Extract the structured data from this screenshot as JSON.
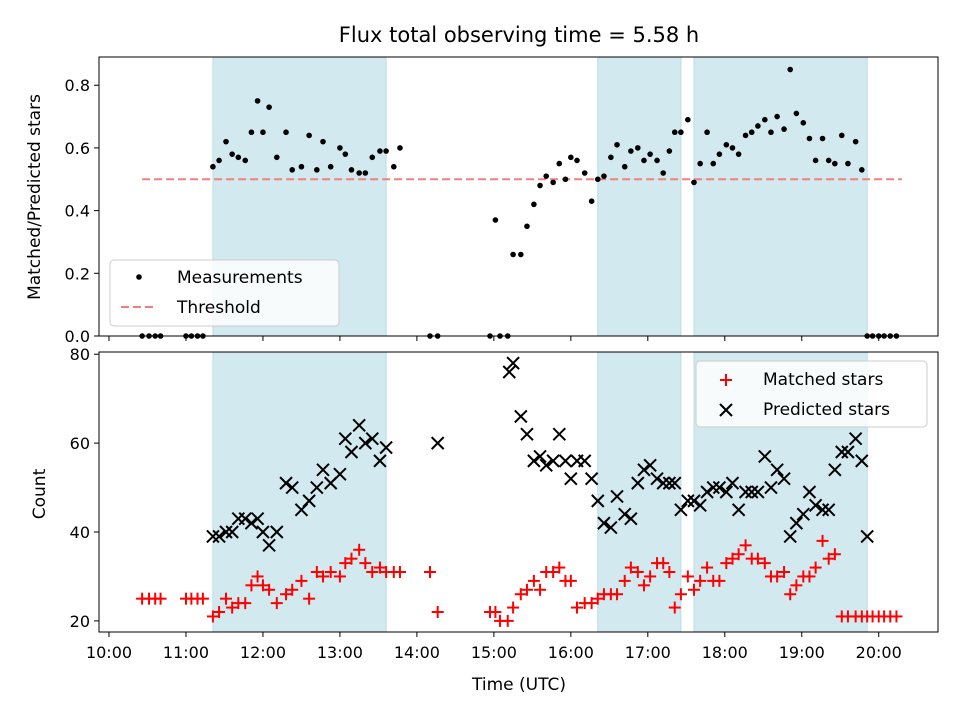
{
  "figure": {
    "title": "Flux total observing time = 5.58 h"
  },
  "chart_data": [
    {
      "type": "scatter",
      "ylabel": "Matched/Predicted stars",
      "xlabel": "",
      "xlim": [
        9.87,
        20.77
      ],
      "ylim": [
        0.0,
        0.89
      ],
      "yticks": [
        0.0,
        0.2,
        0.4,
        0.6,
        0.8
      ],
      "ytick_labels": [
        "0.0",
        "0.2",
        "0.4",
        "0.6",
        "0.8"
      ],
      "legend": {
        "placement": "lower-left",
        "entries": [
          "Measurements",
          "Threshold"
        ]
      },
      "shaded_intervals": [
        [
          11.35,
          13.6
        ],
        [
          16.35,
          17.43
        ],
        [
          17.6,
          19.85
        ]
      ],
      "shade_color": "#d2e9ef",
      "threshold": {
        "name": "Threshold",
        "value": 0.5,
        "x_range": [
          10.43,
          20.3
        ],
        "color": "#f08080"
      },
      "series": [
        {
          "name": "Measurements",
          "color": "#000000",
          "x": [
            10.43,
            10.52,
            10.6,
            10.67,
            11.0,
            11.07,
            11.15,
            11.22,
            11.35,
            11.43,
            11.52,
            11.6,
            11.68,
            11.77,
            11.85,
            11.93,
            12.0,
            12.08,
            12.18,
            12.3,
            12.38,
            12.5,
            12.6,
            12.7,
            12.78,
            12.88,
            13.0,
            13.07,
            13.15,
            13.25,
            13.33,
            13.42,
            13.52,
            13.6,
            13.7,
            13.78,
            14.17,
            14.27,
            14.95,
            15.02,
            15.08,
            15.18,
            15.25,
            15.35,
            15.43,
            15.52,
            15.6,
            15.68,
            15.77,
            15.85,
            15.93,
            16.0,
            16.08,
            16.18,
            16.27,
            16.35,
            16.43,
            16.52,
            16.6,
            16.7,
            16.78,
            16.87,
            16.95,
            17.03,
            17.12,
            17.2,
            17.28,
            17.35,
            17.43,
            17.52,
            17.6,
            17.68,
            17.77,
            17.85,
            17.93,
            18.02,
            18.1,
            18.18,
            18.27,
            18.35,
            18.43,
            18.52,
            18.6,
            18.68,
            18.77,
            18.85,
            18.93,
            19.02,
            19.1,
            19.18,
            19.27,
            19.35,
            19.43,
            19.52,
            19.6,
            19.7,
            19.78,
            19.85,
            19.92,
            20.0,
            20.07,
            20.15,
            20.23
          ],
          "y": [
            0.0,
            0.0,
            0.0,
            0.0,
            0.0,
            0.0,
            0.0,
            0.0,
            0.54,
            0.56,
            0.62,
            0.58,
            0.57,
            0.56,
            0.65,
            0.75,
            0.65,
            0.73,
            0.57,
            0.65,
            0.53,
            0.54,
            0.64,
            0.53,
            0.62,
            0.54,
            0.6,
            0.58,
            0.53,
            0.52,
            0.52,
            0.57,
            0.59,
            0.59,
            0.54,
            0.6,
            0.0,
            0.0,
            0.0,
            0.37,
            0.0,
            0.0,
            0.26,
            0.26,
            0.35,
            0.42,
            0.48,
            0.51,
            0.49,
            0.55,
            0.5,
            0.57,
            0.56,
            0.52,
            0.43,
            0.5,
            0.51,
            0.57,
            0.61,
            0.54,
            0.59,
            0.6,
            0.56,
            0.58,
            0.56,
            0.52,
            0.59,
            0.65,
            0.65,
            0.69,
            0.49,
            0.55,
            0.65,
            0.55,
            0.58,
            0.61,
            0.6,
            0.58,
            0.64,
            0.65,
            0.67,
            0.69,
            0.65,
            0.7,
            0.66,
            0.85,
            0.71,
            0.68,
            0.63,
            0.56,
            0.63,
            0.56,
            0.55,
            0.64,
            0.55,
            0.62,
            0.53,
            0.0,
            0.0,
            0.0,
            0.0,
            0.0,
            0.0
          ]
        }
      ]
    },
    {
      "type": "scatter",
      "ylabel": "Count",
      "xlabel": "Time (UTC)",
      "xlim": [
        9.87,
        20.77
      ],
      "ylim": [
        17.5,
        80.5
      ],
      "yticks": [
        20,
        40,
        60,
        80
      ],
      "ytick_labels": [
        "20",
        "40",
        "60",
        "80"
      ],
      "xticks": [
        10,
        11,
        12,
        13,
        14,
        15,
        16,
        17,
        18,
        19,
        20
      ],
      "xtick_labels": [
        "10:00",
        "11:00",
        "12:00",
        "13:00",
        "14:00",
        "15:00",
        "16:00",
        "17:00",
        "18:00",
        "19:00",
        "20:00"
      ],
      "legend": {
        "placement": "top-right",
        "entries": [
          "Matched stars",
          "Predicted stars"
        ]
      },
      "shaded_intervals": [
        [
          11.35,
          13.6
        ],
        [
          16.35,
          17.43
        ],
        [
          17.6,
          19.85
        ]
      ],
      "shade_color": "#d2e9ef",
      "series": [
        {
          "name": "Matched stars",
          "marker": "+",
          "color": "#ff0000",
          "x": [
            10.43,
            10.52,
            10.6,
            10.67,
            11.0,
            11.07,
            11.15,
            11.22,
            11.35,
            11.43,
            11.52,
            11.6,
            11.68,
            11.77,
            11.85,
            11.93,
            12.0,
            12.08,
            12.18,
            12.3,
            12.38,
            12.5,
            12.6,
            12.7,
            12.78,
            12.88,
            13.0,
            13.07,
            13.15,
            13.25,
            13.33,
            13.42,
            13.52,
            13.6,
            13.7,
            13.78,
            14.17,
            14.27,
            14.95,
            15.02,
            15.08,
            15.18,
            15.25,
            15.35,
            15.43,
            15.52,
            15.6,
            15.68,
            15.77,
            15.85,
            15.93,
            16.0,
            16.08,
            16.18,
            16.27,
            16.35,
            16.43,
            16.52,
            16.6,
            16.7,
            16.78,
            16.87,
            16.95,
            17.03,
            17.12,
            17.2,
            17.28,
            17.35,
            17.43,
            17.52,
            17.6,
            17.68,
            17.77,
            17.85,
            17.93,
            18.02,
            18.1,
            18.18,
            18.27,
            18.35,
            18.43,
            18.52,
            18.6,
            18.68,
            18.77,
            18.85,
            18.93,
            19.02,
            19.1,
            19.18,
            19.27,
            19.35,
            19.43,
            19.52,
            19.6,
            19.7,
            19.78,
            19.85,
            19.92,
            20.0,
            20.07,
            20.15,
            20.23
          ],
          "y": [
            25,
            25,
            25,
            25,
            25,
            25,
            25,
            25,
            21,
            22,
            25,
            23,
            24,
            24,
            28,
            30,
            28,
            27,
            24,
            26,
            27,
            29,
            25,
            31,
            30,
            31,
            30,
            33,
            34,
            36,
            33,
            31,
            32,
            31,
            31,
            31,
            31,
            22,
            22,
            22,
            20,
            20,
            23,
            26,
            27,
            29,
            27,
            31,
            31,
            32,
            29,
            29,
            23,
            24,
            24,
            25,
            26,
            26,
            26,
            29,
            32,
            31,
            28,
            30,
            33,
            33,
            31,
            23,
            26,
            30,
            27,
            29,
            32,
            29,
            29,
            33,
            34,
            35,
            37,
            34,
            34,
            33,
            30,
            30,
            31,
            26,
            28,
            30,
            30,
            32,
            38,
            34,
            35,
            21,
            21,
            21,
            21,
            21,
            21,
            21,
            21,
            21,
            21
          ],
          "x_all": true
        },
        {
          "name": "Predicted stars",
          "marker": "x",
          "color": "#000000",
          "x": [
            11.35,
            11.43,
            11.52,
            11.6,
            11.68,
            11.77,
            11.85,
            11.93,
            12.0,
            12.08,
            12.18,
            12.3,
            12.38,
            12.5,
            12.6,
            12.7,
            12.78,
            12.88,
            13.0,
            13.07,
            13.15,
            13.25,
            13.33,
            13.42,
            13.52,
            13.6,
            14.27,
            15.2,
            15.25,
            15.35,
            15.43,
            15.52,
            15.6,
            15.68,
            15.77,
            15.85,
            15.93,
            16.0,
            16.08,
            16.18,
            16.27,
            16.35,
            16.43,
            16.52,
            16.6,
            16.7,
            16.78,
            16.87,
            16.95,
            17.03,
            17.12,
            17.2,
            17.28,
            17.35,
            17.43,
            17.52,
            17.6,
            17.68,
            17.77,
            17.85,
            17.93,
            18.02,
            18.1,
            18.18,
            18.27,
            18.35,
            18.43,
            18.52,
            18.6,
            18.68,
            18.77,
            18.85,
            18.93,
            19.02,
            19.1,
            19.18,
            19.27,
            19.35,
            19.43,
            19.52,
            19.6,
            19.7,
            19.78,
            19.85
          ],
          "y": [
            39,
            39,
            40,
            40,
            43,
            43,
            42,
            43,
            40,
            37,
            40,
            51,
            50,
            45,
            47,
            50,
            54,
            51,
            53,
            61,
            58,
            64,
            60,
            61,
            56,
            59,
            60,
            76,
            78,
            66,
            62,
            56,
            57,
            55,
            56,
            62,
            56,
            52,
            56,
            56,
            52,
            47,
            42,
            41,
            48,
            44,
            43,
            51,
            54,
            55,
            52,
            51,
            51,
            51,
            45,
            47,
            47,
            46,
            49,
            50,
            50,
            49,
            51,
            45,
            49,
            49,
            49,
            57,
            50,
            54,
            52,
            39,
            42,
            44,
            49,
            46,
            45,
            45,
            54,
            58,
            58,
            61,
            56,
            39
          ]
        }
      ]
    }
  ]
}
